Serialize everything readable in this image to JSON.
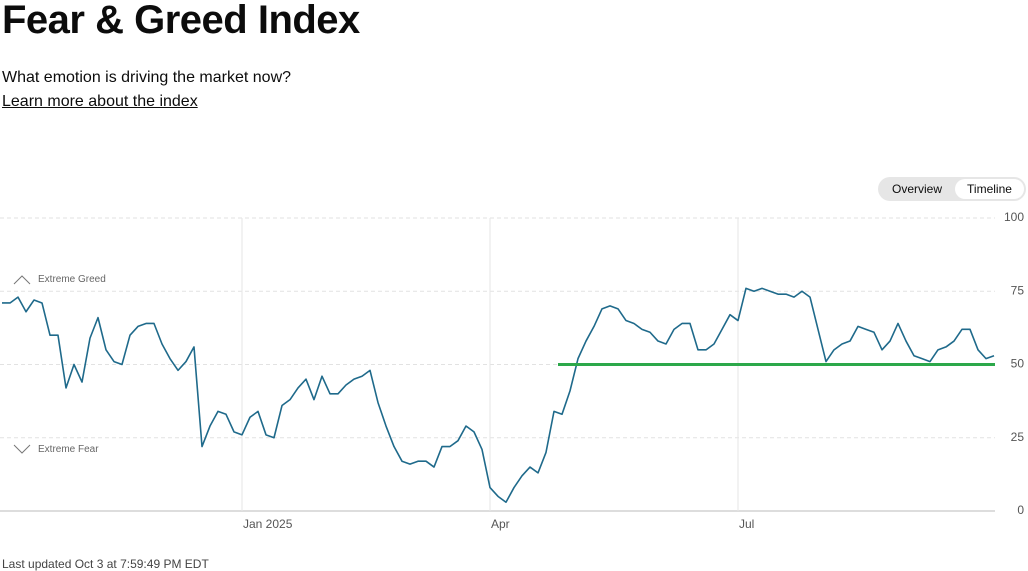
{
  "header": {
    "title": "Fear & Greed Index",
    "subtitle": "What emotion is driving the market now?",
    "link": "Learn more about the index"
  },
  "tabs": [
    "Overview",
    "Timeline"
  ],
  "chart_data": {
    "type": "line",
    "categories": [
      null,
      null,
      null,
      null,
      null,
      null,
      null,
      null,
      null,
      null,
      null,
      null,
      null,
      null,
      null,
      null,
      null,
      null,
      null,
      null,
      null,
      null,
      null,
      null,
      null,
      null,
      null,
      null,
      null,
      null,
      "Jan 2025",
      null,
      null,
      null,
      null,
      null,
      null,
      null,
      null,
      null,
      null,
      null,
      null,
      null,
      null,
      null,
      null,
      null,
      null,
      null,
      null,
      null,
      null,
      null,
      null,
      null,
      null,
      null,
      null,
      null,
      null,
      "Apr",
      null,
      null,
      null,
      null,
      null,
      null,
      null,
      null,
      null,
      null,
      null,
      null,
      null,
      null,
      null,
      null,
      null,
      null,
      null,
      null,
      null,
      null,
      null,
      null,
      null,
      null,
      null,
      null,
      null,
      null,
      "Jul",
      null,
      null,
      null,
      null,
      null,
      null,
      null,
      null,
      null,
      null,
      null,
      null,
      null,
      null,
      null,
      null,
      null,
      null,
      null,
      null,
      null,
      null,
      null,
      null,
      null,
      null,
      null,
      null,
      null,
      null,
      null,
      null
    ],
    "values": [
      71,
      71,
      73,
      68,
      72,
      71,
      60,
      60,
      42,
      50,
      44,
      59,
      66,
      55,
      51,
      50,
      60,
      63,
      64,
      64,
      57,
      52,
      48,
      51,
      56,
      22,
      29,
      34,
      33,
      27,
      26,
      32,
      34,
      26,
      25,
      36,
      38,
      42,
      45,
      38,
      46,
      40,
      40,
      43,
      45,
      46,
      48,
      37,
      29,
      22,
      17,
      16,
      17,
      17,
      15,
      22,
      22,
      24,
      29,
      27,
      21,
      8,
      5,
      3,
      8,
      12,
      15,
      13,
      20,
      34,
      33,
      41,
      52,
      58,
      63,
      69,
      70,
      69,
      65,
      64,
      62,
      61,
      58,
      57,
      62,
      64,
      64,
      55,
      55,
      57,
      62,
      67,
      65,
      76,
      75,
      76,
      75,
      74,
      74,
      73,
      75,
      73,
      62,
      51,
      55,
      57,
      58,
      63,
      62,
      61,
      55,
      58,
      64,
      58,
      53,
      52,
      51,
      55,
      56,
      58,
      62,
      62,
      55,
      52,
      53
    ],
    "color": "#1f6a8b",
    "ylim": [
      0,
      100
    ],
    "yticks": [
      0,
      25,
      50,
      75,
      100
    ],
    "grid": true,
    "reference_line": {
      "value": 50,
      "color": "#2ca84a"
    },
    "annotations": [
      {
        "text": "Extreme Greed",
        "value": 79
      },
      {
        "text": "Extreme Fear",
        "value": 21
      }
    ]
  },
  "footer": "Last updated Oct 3 at 7:59:49 PM EDT"
}
